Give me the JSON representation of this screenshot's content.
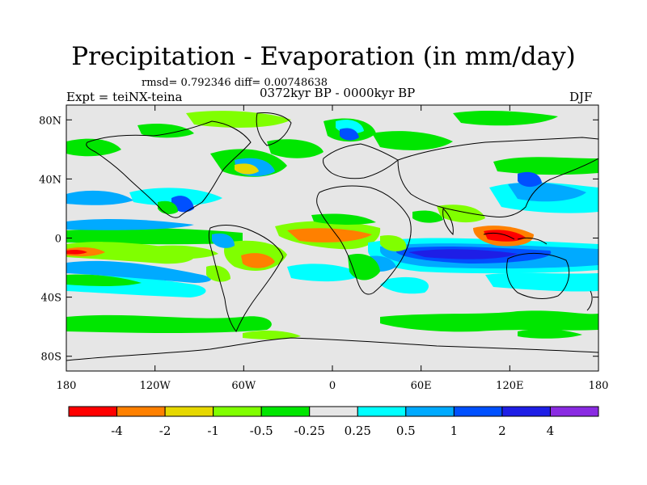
{
  "title": "Precipitation - Evaporation (in mm/day)",
  "stats": "rmsd= 0.792346 diff= 0.00748638",
  "expt": "Expt = teiNX-teina",
  "period": "0372kyr BP - 0000kyr BP",
  "season": "DJF",
  "lat_ticks": [
    {
      "value": 80,
      "label": "80N"
    },
    {
      "value": 40,
      "label": "40N"
    },
    {
      "value": 0,
      "label": "0"
    },
    {
      "value": -40,
      "label": "40S"
    },
    {
      "value": -80,
      "label": "80S"
    }
  ],
  "lon_ticks": [
    {
      "value": -180,
      "label": "180"
    },
    {
      "value": -120,
      "label": "120W"
    },
    {
      "value": -60,
      "label": "60W"
    },
    {
      "value": 0,
      "label": "0"
    },
    {
      "value": 60,
      "label": "60E"
    },
    {
      "value": 120,
      "label": "120E"
    },
    {
      "value": 180,
      "label": "180"
    }
  ],
  "colorbar": {
    "levels": [
      "-4",
      "-2",
      "-1",
      "-0.5",
      "-0.25",
      "0.25",
      "0.5",
      "1",
      "2",
      "4"
    ],
    "colors": [
      "#ff0000",
      "#ff8000",
      "#e6d800",
      "#80ff00",
      "#00e600",
      "#e6e6e6",
      "#00ffff",
      "#00aaff",
      "#0050ff",
      "#1e1ee6",
      "#8a2be2"
    ]
  },
  "background_color": "#e6e6e6"
}
